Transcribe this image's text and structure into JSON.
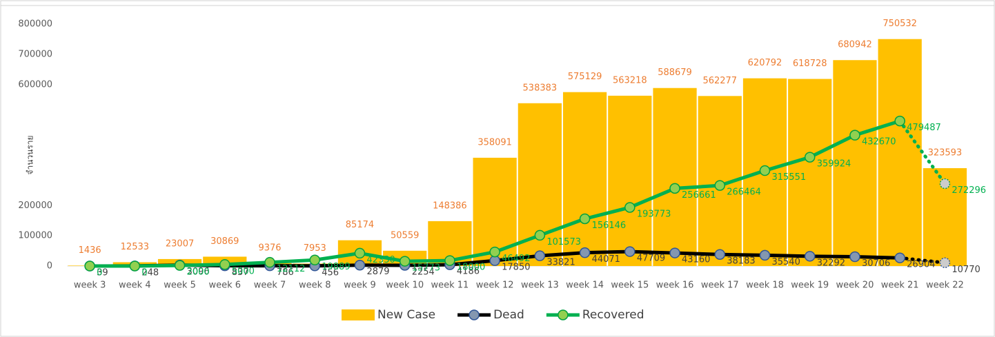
{
  "chart_data": {
    "type": "bar_line",
    "y_axis_label": "จำนวนราย",
    "categories": [
      "week 3",
      "week 4",
      "week 5",
      "week 6",
      "week 7",
      "week 8",
      "week 9",
      "week 10",
      "week 11",
      "week 12",
      "week 13",
      "week 14",
      "week 15",
      "week 16",
      "week 17",
      "week 18",
      "week 19",
      "week 20",
      "week 21",
      "week 22"
    ],
    "series": [
      {
        "name": "New Case",
        "kind": "bar",
        "color": "#FFC000",
        "label_color": "#ED7D31",
        "values": [
          1436,
          12533,
          23007,
          30869,
          9376,
          7953,
          85174,
          50559,
          148386,
          358091,
          538383,
          575129,
          563218,
          588679,
          562277,
          620792,
          618728,
          680942,
          750532,
          323593
        ]
      },
      {
        "name": "Dead",
        "kind": "line",
        "color": "#000000",
        "marker_fill": "#8497B0",
        "marker_stroke": "#2F5597",
        "label_color": "#404040",
        "dotted_last_segment": true,
        "values": [
          39,
          248,
          3096,
          837,
          786,
          456,
          2879,
          2254,
          4186,
          17850,
          33821,
          44071,
          47709,
          43160,
          38183,
          35540,
          32292,
          30706,
          26904,
          10770
        ]
      },
      {
        "name": "Recovered",
        "kind": "line",
        "color": "#00B050",
        "marker_fill": "#92D050",
        "marker_stroke": "#00A040",
        "label_color": "#00B050",
        "dotted_last_segment": true,
        "values": [
          0,
          0,
          2000,
          5000,
          12112,
          19889,
          42330,
          15773,
          18000,
          46492,
          101573,
          156146,
          193773,
          256661,
          266464,
          315551,
          359924,
          432670,
          479487,
          272296
        ]
      }
    ],
    "ylim": [
      0,
      800000
    ],
    "yticks": [
      0,
      100000,
      200000,
      600000,
      700000,
      800000
    ]
  }
}
